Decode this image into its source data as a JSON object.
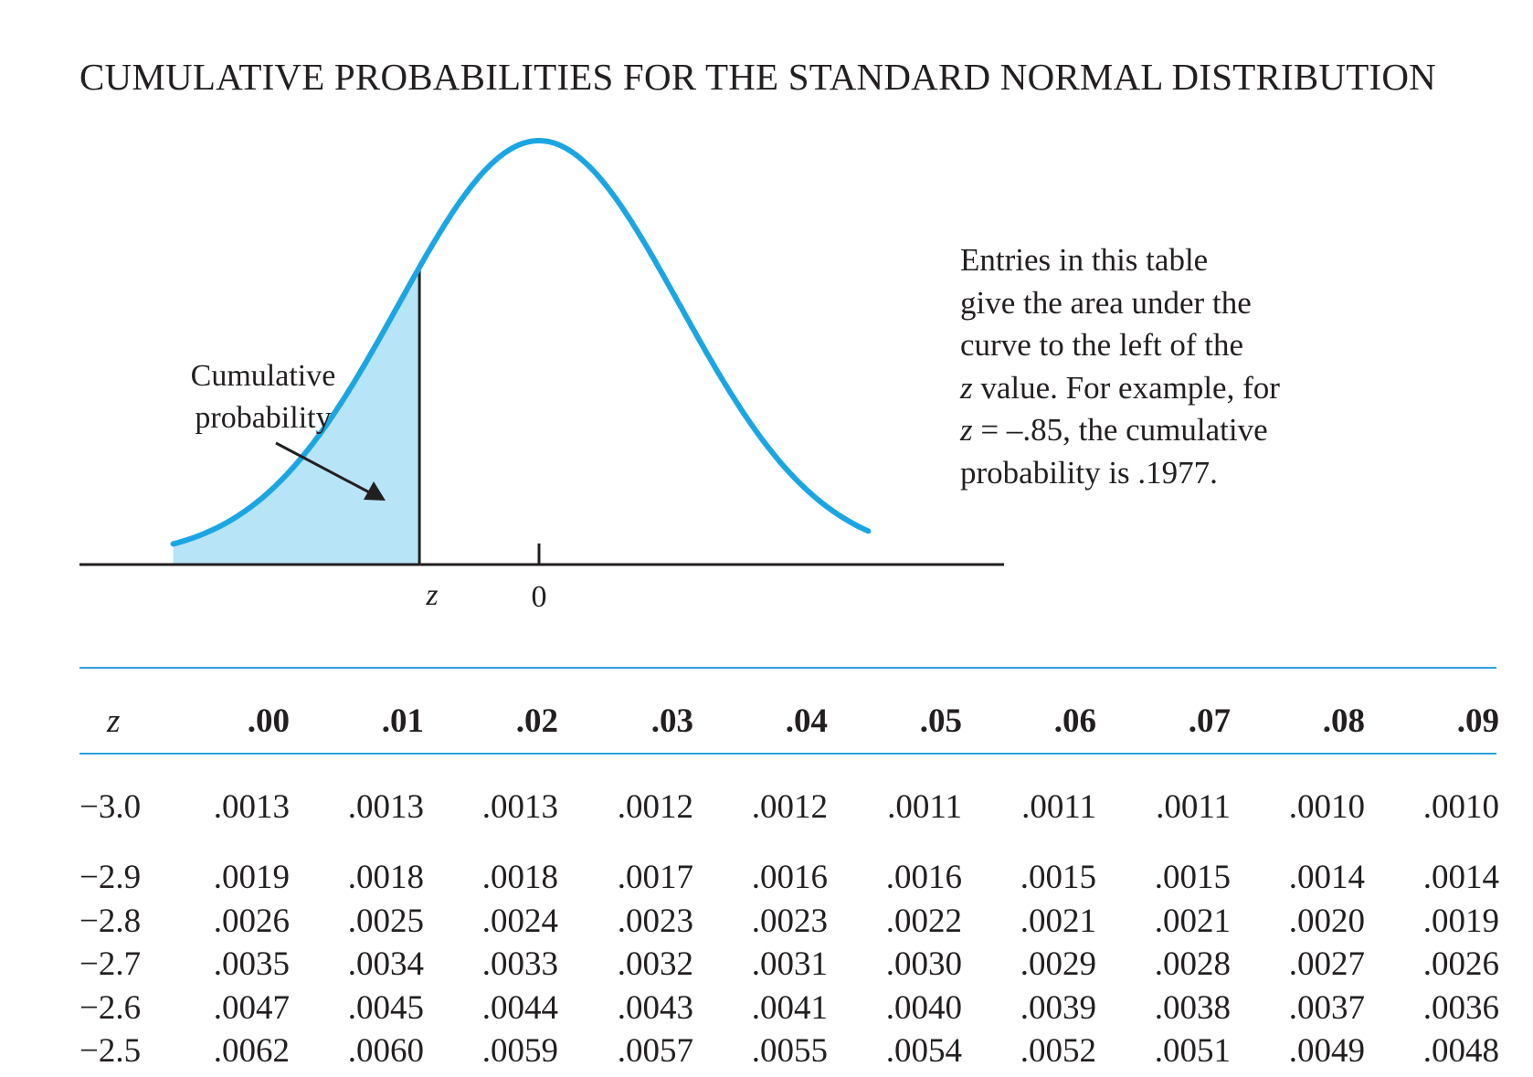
{
  "title": "CUMULATIVE PROBABILITIES FOR THE STANDARD NORMAL DISTRIBUTION",
  "figure": {
    "label_lines": [
      "Cumulative",
      "probability"
    ],
    "z_label": "z",
    "zero_label": "0",
    "curve_color": "#1ba6e3",
    "shade_color": "#b8e4f8",
    "shaded_z": -0.85
  },
  "explanation": {
    "line1": "Entries in this table",
    "line2": "give the area under the",
    "line3": "curve to the left of the",
    "line4_z": "z",
    "line4_rest": " value. For example, for",
    "line5_z": "z",
    "line5_rest": " = –.85, the cumulative",
    "line6": "probability is .1977."
  },
  "table": {
    "z_header": "z",
    "columns": [
      ".00",
      ".01",
      ".02",
      ".03",
      ".04",
      ".05",
      ".06",
      ".07",
      ".08",
      ".09"
    ],
    "rows": [
      {
        "z": "−3.0",
        "values": [
          ".0013",
          ".0013",
          ".0013",
          ".0012",
          ".0012",
          ".0011",
          ".0011",
          ".0011",
          ".0010",
          ".0010"
        ]
      },
      {
        "z": "−2.9",
        "values": [
          ".0019",
          ".0018",
          ".0018",
          ".0017",
          ".0016",
          ".0016",
          ".0015",
          ".0015",
          ".0014",
          ".0014"
        ]
      },
      {
        "z": "−2.8",
        "values": [
          ".0026",
          ".0025",
          ".0024",
          ".0023",
          ".0023",
          ".0022",
          ".0021",
          ".0021",
          ".0020",
          ".0019"
        ]
      },
      {
        "z": "−2.7",
        "values": [
          ".0035",
          ".0034",
          ".0033",
          ".0032",
          ".0031",
          ".0030",
          ".0029",
          ".0028",
          ".0027",
          ".0026"
        ]
      },
      {
        "z": "−2.6",
        "values": [
          ".0047",
          ".0045",
          ".0044",
          ".0043",
          ".0041",
          ".0040",
          ".0039",
          ".0038",
          ".0037",
          ".0036"
        ]
      },
      {
        "z": "−2.5",
        "values": [
          ".0062",
          ".0060",
          ".0059",
          ".0057",
          ".0055",
          ".0054",
          ".0052",
          ".0051",
          ".0049",
          ".0048"
        ]
      }
    ]
  }
}
